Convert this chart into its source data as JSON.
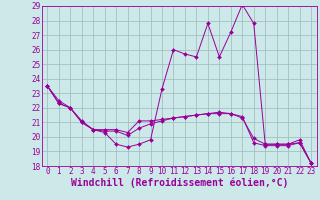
{
  "xlabel": "Windchill (Refroidissement éolien,°C)",
  "xlim": [
    -0.5,
    23.5
  ],
  "ylim": [
    18,
    29
  ],
  "yticks": [
    18,
    19,
    20,
    21,
    22,
    23,
    24,
    25,
    26,
    27,
    28,
    29
  ],
  "xticks": [
    0,
    1,
    2,
    3,
    4,
    5,
    6,
    7,
    8,
    9,
    10,
    11,
    12,
    13,
    14,
    15,
    16,
    17,
    18,
    19,
    20,
    21,
    22,
    23
  ],
  "line_color": "#990099",
  "bg_color": "#cce8e8",
  "grid_color": "#99bbbb",
  "line1": [
    23.5,
    22.5,
    22.0,
    21.0,
    20.5,
    20.3,
    19.5,
    19.3,
    19.5,
    19.8,
    23.3,
    26.0,
    25.7,
    25.5,
    27.8,
    25.5,
    27.2,
    29.1,
    27.8,
    19.5,
    19.5,
    19.5,
    19.8,
    18.2
  ],
  "line2": [
    23.5,
    22.3,
    22.0,
    21.1,
    20.5,
    20.5,
    20.5,
    20.3,
    21.1,
    21.1,
    21.2,
    21.3,
    21.4,
    21.5,
    21.6,
    21.7,
    21.6,
    21.4,
    19.6,
    19.4,
    19.4,
    19.4,
    19.6,
    18.2
  ],
  "line3": [
    23.5,
    22.3,
    22.0,
    21.0,
    20.5,
    20.4,
    20.4,
    20.1,
    20.6,
    20.9,
    21.1,
    21.3,
    21.4,
    21.5,
    21.6,
    21.6,
    21.6,
    21.3,
    19.9,
    19.5,
    19.5,
    19.5,
    19.6,
    18.2
  ],
  "tick_fontsize": 5.5,
  "xlabel_fontsize": 7.0,
  "marker": "D",
  "markersize": 2.0,
  "linewidth": 0.7
}
